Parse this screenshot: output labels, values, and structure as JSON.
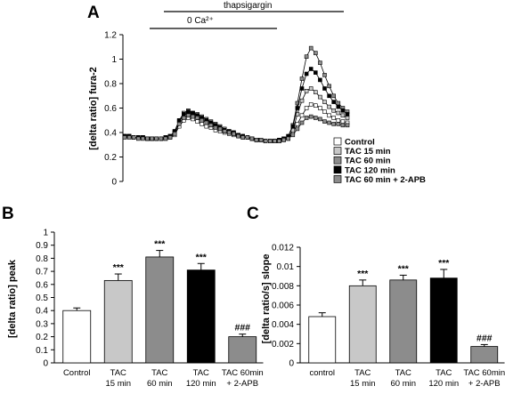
{
  "chart_data": [
    {
      "panel": "A",
      "type": "line",
      "ylabel": "[delta ratio] fura-2",
      "ylim": [
        0,
        1.2
      ],
      "yticks": [
        "0",
        "0.2",
        "0.4",
        "0.6",
        "0.8",
        "1",
        "1.2"
      ],
      "annotations": {
        "bar1": "thapsigargin",
        "bar2": "0 Ca²⁺"
      },
      "legend": {
        "placement": "bottom-right",
        "entries": [
          "Control",
          "TAC 15 min",
          "TAC 60 min",
          "TAC 120 min",
          "TAC 60 min + 2-APB"
        ]
      },
      "series": [
        {
          "name": "Control",
          "color": "#ffffff",
          "values": [
            0.37,
            0.37,
            0.36,
            0.36,
            0.36,
            0.35,
            0.35,
            0.35,
            0.35,
            0.35,
            0.36,
            0.38,
            0.45,
            0.5,
            0.52,
            0.51,
            0.49,
            0.47,
            0.45,
            0.44,
            0.42,
            0.41,
            0.4,
            0.39,
            0.38,
            0.37,
            0.36,
            0.36,
            0.35,
            0.34,
            0.34,
            0.33,
            0.33,
            0.33,
            0.33,
            0.34,
            0.35,
            0.4,
            0.47,
            0.54,
            0.6,
            0.63,
            0.62,
            0.6,
            0.57,
            0.54,
            0.52,
            0.5,
            0.49,
            0.48
          ]
        },
        {
          "name": "TAC 15 min",
          "color": "#c8c8c8",
          "values": [
            0.37,
            0.37,
            0.36,
            0.36,
            0.36,
            0.35,
            0.35,
            0.35,
            0.35,
            0.36,
            0.37,
            0.4,
            0.49,
            0.54,
            0.56,
            0.55,
            0.53,
            0.51,
            0.49,
            0.47,
            0.45,
            0.43,
            0.41,
            0.4,
            0.39,
            0.38,
            0.37,
            0.36,
            0.35,
            0.34,
            0.34,
            0.33,
            0.33,
            0.33,
            0.33,
            0.34,
            0.36,
            0.42,
            0.55,
            0.66,
            0.74,
            0.76,
            0.73,
            0.69,
            0.65,
            0.61,
            0.58,
            0.56,
            0.54,
            0.52
          ]
        },
        {
          "name": "TAC 60 min",
          "color": "#8c8c8c",
          "values": [
            0.37,
            0.37,
            0.36,
            0.36,
            0.36,
            0.35,
            0.35,
            0.35,
            0.35,
            0.36,
            0.37,
            0.41,
            0.5,
            0.56,
            0.58,
            0.56,
            0.55,
            0.53,
            0.51,
            0.49,
            0.47,
            0.45,
            0.43,
            0.41,
            0.4,
            0.38,
            0.37,
            0.36,
            0.35,
            0.34,
            0.34,
            0.33,
            0.33,
            0.33,
            0.34,
            0.35,
            0.37,
            0.46,
            0.64,
            0.84,
            1.02,
            1.09,
            1.05,
            0.97,
            0.87,
            0.78,
            0.7,
            0.64,
            0.6,
            0.57
          ]
        },
        {
          "name": "TAC 120 min",
          "color": "#000000",
          "values": [
            0.37,
            0.37,
            0.36,
            0.36,
            0.36,
            0.35,
            0.35,
            0.35,
            0.35,
            0.36,
            0.37,
            0.41,
            0.5,
            0.55,
            0.57,
            0.56,
            0.54,
            0.52,
            0.5,
            0.48,
            0.46,
            0.44,
            0.42,
            0.41,
            0.4,
            0.38,
            0.37,
            0.36,
            0.35,
            0.34,
            0.34,
            0.33,
            0.33,
            0.33,
            0.34,
            0.35,
            0.37,
            0.45,
            0.6,
            0.76,
            0.88,
            0.92,
            0.89,
            0.83,
            0.76,
            0.7,
            0.65,
            0.61,
            0.58,
            0.55
          ]
        },
        {
          "name": "TAC 60 min + 2-APB",
          "color": "#8c8c8c",
          "values": [
            0.36,
            0.36,
            0.36,
            0.35,
            0.35,
            0.35,
            0.35,
            0.35,
            0.35,
            0.35,
            0.36,
            0.39,
            0.47,
            0.52,
            0.54,
            0.53,
            0.52,
            0.5,
            0.48,
            0.46,
            0.44,
            0.43,
            0.41,
            0.4,
            0.39,
            0.37,
            0.36,
            0.36,
            0.35,
            0.34,
            0.34,
            0.33,
            0.33,
            0.33,
            0.33,
            0.34,
            0.35,
            0.38,
            0.43,
            0.48,
            0.52,
            0.53,
            0.52,
            0.51,
            0.49,
            0.48,
            0.47,
            0.47,
            0.46,
            0.46
          ]
        }
      ]
    },
    {
      "panel": "B",
      "type": "bar",
      "ylabel": "[delta ratio] peak",
      "ylim": [
        0,
        1
      ],
      "yticks": [
        "0",
        "0.1",
        "0.2",
        "0.3",
        "0.4",
        "0.5",
        "0.6",
        "0.7",
        "0.8",
        "0.9",
        "1"
      ],
      "categories": [
        [
          "Control"
        ],
        [
          "TAC",
          "15 min"
        ],
        [
          "TAC",
          "60 min"
        ],
        [
          "TAC",
          "120 min"
        ],
        [
          "TAC 60min",
          "+ 2-APB"
        ]
      ],
      "values": [
        0.4,
        0.63,
        0.81,
        0.71,
        0.2
      ],
      "errors": [
        0.02,
        0.05,
        0.05,
        0.05,
        0.02
      ],
      "colors": [
        "#ffffff",
        "#c8c8c8",
        "#8c8c8c",
        "#000000",
        "#8c8c8c"
      ],
      "labels": [
        "",
        "***",
        "***",
        "***",
        "###"
      ]
    },
    {
      "panel": "C",
      "type": "bar",
      "ylabel": "[delta ratio/s] slope",
      "ylim": [
        0,
        0.012
      ],
      "yticks": [
        "0",
        "0.002",
        "0.004",
        "0.006",
        "0.008",
        "0.01",
        "0.012"
      ],
      "categories": [
        [
          "control"
        ],
        [
          "TAC",
          "15 min"
        ],
        [
          "TAC",
          "60 min"
        ],
        [
          "TAC",
          "120 min"
        ],
        [
          "TAC 60min",
          "+ 2-APB"
        ]
      ],
      "values": [
        0.0048,
        0.008,
        0.0086,
        0.0088,
        0.0017
      ],
      "errors": [
        0.0004,
        0.0006,
        0.0005,
        0.0009,
        0.0002
      ],
      "colors": [
        "#ffffff",
        "#c8c8c8",
        "#8c8c8c",
        "#000000",
        "#8c8c8c"
      ],
      "labels": [
        "",
        "***",
        "***",
        "***",
        "###"
      ]
    }
  ],
  "panel_letters": {
    "a": "A",
    "b": "B",
    "c": "C"
  }
}
